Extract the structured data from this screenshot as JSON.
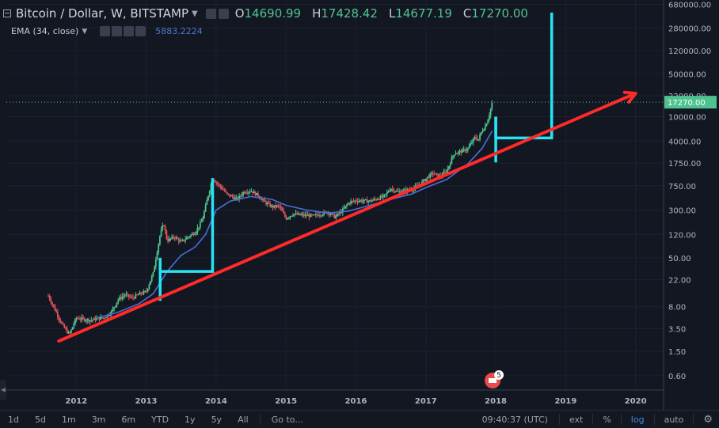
{
  "header": {
    "symbol": "Bitcoin / Dollar, W, BITSTAMP",
    "open_label": "O",
    "open": "14690.99",
    "high_label": "H",
    "high": "17428.42",
    "low_label": "L",
    "low": "14677.19",
    "close_label": "C",
    "close": "17270.00"
  },
  "indicator": {
    "name": "EMA (34, close)",
    "value": "5883.2224"
  },
  "price_badge": "17270.00",
  "event_badge": "5",
  "toolbar": {
    "ranges": [
      "1d",
      "5d",
      "1m",
      "3m",
      "6m",
      "YTD",
      "1y",
      "5y",
      "All"
    ],
    "goto": "Go to...",
    "time": "09:40:37 (UTC)",
    "ext": "ext",
    "pct": "%",
    "log": "log",
    "auto": "auto"
  },
  "colors": {
    "up": "#4fc38f",
    "down": "#e2555b",
    "ema": "#4a6fd6",
    "trend": "#ff2a2a",
    "annot": "#28e3f4",
    "price_line": "#4fc38f"
  },
  "chart_data": {
    "type": "candlestick",
    "scale": "log",
    "y_ticks": [
      680000,
      280000,
      120000,
      50000,
      22000,
      10000,
      4000,
      1750,
      750,
      300,
      120,
      50,
      22,
      8,
      3.5,
      1.5,
      0.6
    ],
    "y_tick_labels": [
      "680000.00",
      "280000.00",
      "120000.00",
      "50000.00",
      "22000.00",
      "10000.00",
      "4000.00",
      "1750.00",
      "750.00",
      "300.00",
      "120.00",
      "50.00",
      "22.00",
      "8.00",
      "3.50",
      "1.50",
      "0.60"
    ],
    "x_ticks": [
      "2012",
      "2013",
      "2014",
      "2015",
      "2016",
      "2017",
      "2018",
      "2019",
      "2020"
    ],
    "price_path": [
      [
        2011.6,
        12
      ],
      [
        2011.7,
        7
      ],
      [
        2011.8,
        4
      ],
      [
        2011.9,
        2.8
      ],
      [
        2012.0,
        5.2
      ],
      [
        2012.1,
        5
      ],
      [
        2012.2,
        4.8
      ],
      [
        2012.3,
        5.1
      ],
      [
        2012.4,
        5.3
      ],
      [
        2012.5,
        6.5
      ],
      [
        2012.6,
        10.5
      ],
      [
        2012.7,
        12.5
      ],
      [
        2012.8,
        11
      ],
      [
        2012.9,
        12.8
      ],
      [
        2013.0,
        14
      ],
      [
        2013.1,
        28
      ],
      [
        2013.2,
        120
      ],
      [
        2013.25,
        180
      ],
      [
        2013.3,
        95
      ],
      [
        2013.4,
        110
      ],
      [
        2013.5,
        90
      ],
      [
        2013.6,
        110
      ],
      [
        2013.7,
        130
      ],
      [
        2013.8,
        200
      ],
      [
        2013.9,
        600
      ],
      [
        2013.95,
        1000
      ],
      [
        2014.0,
        850
      ],
      [
        2014.1,
        650
      ],
      [
        2014.15,
        550
      ],
      [
        2014.3,
        450
      ],
      [
        2014.4,
        600
      ],
      [
        2014.5,
        620
      ],
      [
        2014.6,
        520
      ],
      [
        2014.7,
        400
      ],
      [
        2014.8,
        340
      ],
      [
        2014.9,
        350
      ],
      [
        2015.0,
        220
      ],
      [
        2015.1,
        260
      ],
      [
        2015.2,
        250
      ],
      [
        2015.4,
        240
      ],
      [
        2015.5,
        260
      ],
      [
        2015.6,
        280
      ],
      [
        2015.7,
        230
      ],
      [
        2015.8,
        290
      ],
      [
        2015.9,
        400
      ],
      [
        2016.0,
        430
      ],
      [
        2016.2,
        420
      ],
      [
        2016.4,
        500
      ],
      [
        2016.5,
        680
      ],
      [
        2016.6,
        590
      ],
      [
        2016.8,
        660
      ],
      [
        2016.9,
        750
      ],
      [
        2017.0,
        980
      ],
      [
        2017.1,
        1200
      ],
      [
        2017.2,
        1050
      ],
      [
        2017.3,
        1300
      ],
      [
        2017.4,
        2500
      ],
      [
        2017.5,
        2700
      ],
      [
        2017.6,
        3000
      ],
      [
        2017.7,
        4600
      ],
      [
        2017.75,
        4200
      ],
      [
        2017.8,
        5800
      ],
      [
        2017.85,
        7000
      ],
      [
        2017.9,
        10000
      ],
      [
        2017.95,
        17270
      ]
    ],
    "ema_path": [
      [
        2012.3,
        5.3
      ],
      [
        2012.6,
        6.5
      ],
      [
        2012.9,
        9
      ],
      [
        2013.1,
        13
      ],
      [
        2013.3,
        30
      ],
      [
        2013.5,
        55
      ],
      [
        2013.7,
        75
      ],
      [
        2013.85,
        120
      ],
      [
        2014.0,
        300
      ],
      [
        2014.2,
        420
      ],
      [
        2014.5,
        500
      ],
      [
        2014.8,
        450
      ],
      [
        2015.0,
        360
      ],
      [
        2015.3,
        300
      ],
      [
        2015.6,
        270
      ],
      [
        2015.9,
        290
      ],
      [
        2016.2,
        360
      ],
      [
        2016.5,
        450
      ],
      [
        2016.8,
        550
      ],
      [
        2017.0,
        700
      ],
      [
        2017.3,
        950
      ],
      [
        2017.6,
        1700
      ],
      [
        2017.8,
        3000
      ],
      [
        2017.95,
        5883
      ]
    ],
    "trendline": [
      [
        2011.75,
        2.2
      ],
      [
        2020.0,
        24000
      ]
    ],
    "annotations": [
      {
        "type": "bracket",
        "x0": 2013.2,
        "x1": 2013.95,
        "y_low": 10,
        "y_left": 50,
        "y_right": 30,
        "y_top": 1000
      },
      {
        "type": "bracket",
        "x0": 2018.0,
        "x1": 2018.8,
        "y_low": 1800,
        "y_left": 10000,
        "y_right": 4500,
        "y_top": 500000
      }
    ],
    "last_price": 17270
  }
}
